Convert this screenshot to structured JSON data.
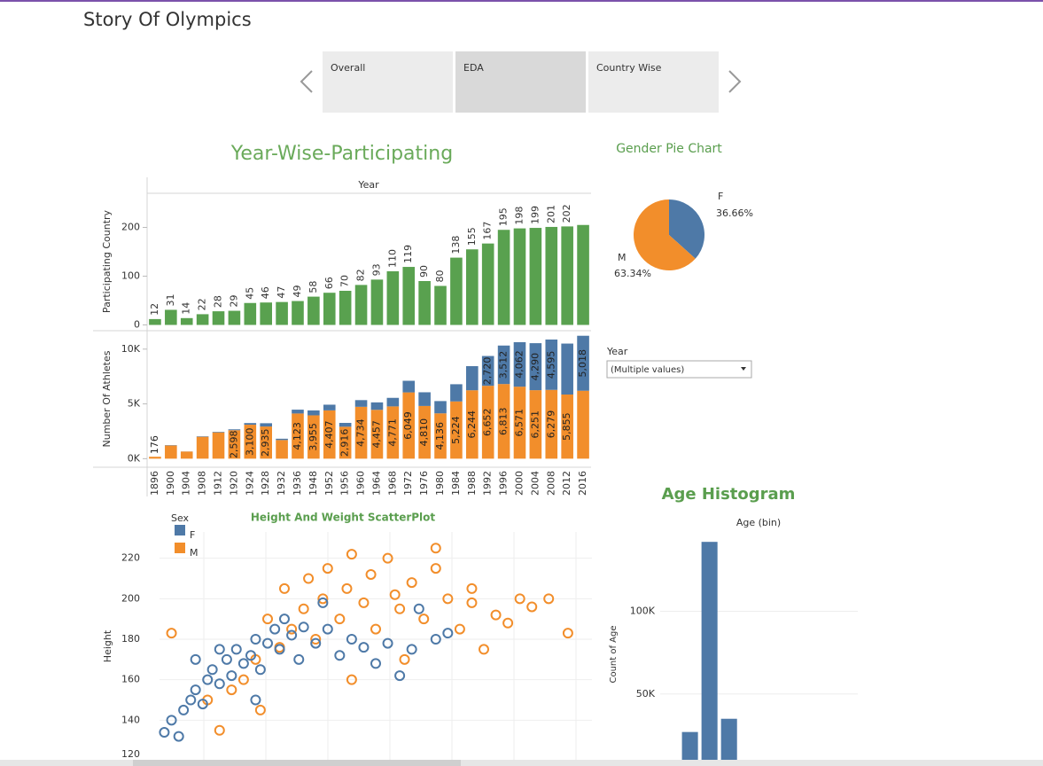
{
  "header": {
    "title": "Story Of Olympics"
  },
  "tabs": [
    "Overall",
    "EDA",
    "Country Wise"
  ],
  "filter": {
    "label": "Year",
    "value": "(Multiple values)"
  },
  "chart_data": [
    {
      "type": "bar",
      "title": "Year-Wise-Participating",
      "x_header": "Year",
      "ylabel": "Participating Country",
      "categories": [
        "1896",
        "1900",
        "1904",
        "1908",
        "1912",
        "1920",
        "1924",
        "1928",
        "1932",
        "1936",
        "1948",
        "1952",
        "1956",
        "1960",
        "1964",
        "1968",
        "1972",
        "1976",
        "1980",
        "1984",
        "1988",
        "1992",
        "1996",
        "2000",
        "2004",
        "2008",
        "2012",
        "2016"
      ],
      "values": [
        12,
        31,
        14,
        22,
        28,
        29,
        45,
        46,
        47,
        49,
        58,
        66,
        70,
        82,
        93,
        110,
        119,
        90,
        80,
        138,
        155,
        167,
        195,
        198,
        199,
        201,
        202,
        205
      ],
      "value_labels": [
        "12",
        "31",
        "14",
        "22",
        "28",
        "29",
        "45",
        "46",
        "47",
        "49",
        "58",
        "66",
        "70",
        "82",
        "93",
        "110",
        "119",
        "90",
        "80",
        "138",
        "155",
        "167",
        "195",
        "198",
        "199",
        "201",
        "202",
        null
      ],
      "color": "#59a14f",
      "ylim": [
        -10,
        270
      ],
      "yticks": [
        0,
        100,
        200
      ]
    },
    {
      "type": "stacked_bar",
      "ylabel": "Number Of Athletes",
      "series": [
        {
          "color": "#f28e2b",
          "values": [
            176,
            1200,
            650,
            2000,
            2400,
            2598,
            3100,
            2935,
            1700,
            4123,
            3955,
            4407,
            2916,
            4734,
            4457,
            4771,
            6049,
            4810,
            4136,
            5224,
            6244,
            6652,
            6813,
            6571,
            6251,
            6279,
            5855,
            6200
          ],
          "value_labels": [
            "176",
            null,
            null,
            null,
            null,
            "2,598",
            "3,100",
            "2,935",
            null,
            "4,123",
            "3,955",
            "4,407",
            "2,916",
            "4,734",
            "4,457",
            "4,771",
            "6,049",
            "4,810",
            "4,136",
            "5,224",
            "6,244",
            "6,652",
            "6,813",
            "6,571",
            "6,251",
            "6,279",
            "5,855",
            null
          ]
        },
        {
          "color": "#4e79a7",
          "values": [
            0,
            30,
            6,
            40,
            50,
            80,
            150,
            300,
            120,
            350,
            450,
            520,
            350,
            610,
            680,
            780,
            1060,
            1250,
            1120,
            1570,
            2200,
            2720,
            3512,
            4062,
            4290,
            4595,
            4650,
            5018
          ],
          "value_labels": [
            null,
            null,
            null,
            null,
            null,
            null,
            null,
            null,
            null,
            null,
            null,
            null,
            null,
            null,
            null,
            null,
            null,
            null,
            null,
            null,
            null,
            "2,720",
            "3,512",
            "4,062",
            "4,290",
            "4,595",
            null,
            "5,018"
          ]
        }
      ],
      "ylim": [
        -700,
        11600
      ],
      "yticks": [
        {
          "value": 0,
          "label": "0K"
        },
        {
          "value": 5000,
          "label": "5K"
        },
        {
          "value": 10000,
          "label": "10K"
        }
      ]
    },
    {
      "type": "pie",
      "title": "Gender Pie Chart",
      "categories": [
        "F",
        "M"
      ],
      "values": [
        36.66,
        63.34
      ],
      "value_labels": [
        "36.66%",
        "63.34%"
      ],
      "colors": [
        "#4e79a7",
        "#f28e2b"
      ]
    },
    {
      "type": "scatter",
      "title": "Height And Weight ScatterPlot",
      "legend_title": "Sex",
      "ylabel": "Height",
      "xlim": [
        20,
        200
      ],
      "ylim": [
        120,
        233
      ],
      "yticks": [
        120,
        140,
        160,
        180,
        200,
        220
      ],
      "grid": true,
      "series": [
        {
          "name": "F",
          "color": "#4e79a7",
          "x": [
            22,
            25,
            28,
            30,
            33,
            35,
            38,
            40,
            42,
            45,
            48,
            50,
            52,
            55,
            58,
            60,
            62,
            65,
            68,
            70,
            72,
            75,
            78,
            80,
            85,
            90,
            95,
            100,
            105,
            110,
            115,
            120,
            125,
            135,
            140,
            128,
            88,
            60,
            45,
            35
          ],
          "y": [
            134,
            140,
            132,
            145,
            150,
            155,
            148,
            160,
            165,
            158,
            170,
            162,
            175,
            168,
            172,
            180,
            165,
            178,
            185,
            175,
            190,
            182,
            170,
            186,
            178,
            185,
            172,
            180,
            176,
            168,
            178,
            162,
            175,
            180,
            183,
            195,
            198,
            150,
            175,
            170
          ]
        },
        {
          "name": "M",
          "color": "#f28e2b",
          "x": [
            25,
            40,
            45,
            50,
            55,
            60,
            62,
            65,
            70,
            72,
            75,
            80,
            82,
            85,
            88,
            90,
            95,
            98,
            100,
            105,
            108,
            110,
            115,
            118,
            120,
            125,
            130,
            135,
            140,
            145,
            150,
            155,
            160,
            165,
            170,
            175,
            182,
            190,
            122,
            100,
            135,
            150
          ],
          "y": [
            183,
            150,
            135,
            155,
            160,
            170,
            145,
            190,
            176,
            205,
            185,
            195,
            210,
            180,
            200,
            215,
            190,
            205,
            222,
            198,
            212,
            185,
            220,
            202,
            195,
            208,
            190,
            215,
            200,
            185,
            198,
            175,
            192,
            188,
            200,
            196,
            200,
            183,
            170,
            160,
            225,
            205
          ]
        }
      ]
    },
    {
      "type": "histogram",
      "title": "Age Histogram",
      "x_header": "Age (bin)",
      "ylabel": "Count of Age",
      "bins": [
        10,
        20,
        30,
        40
      ],
      "values": [
        27000,
        142000,
        35000
      ],
      "color": "#4e79a7",
      "xlim": [
        -27,
        100
      ],
      "ylim": [
        0,
        148000
      ],
      "yticks": [
        {
          "value": 50000,
          "label": "50K"
        },
        {
          "value": 100000,
          "label": "100K"
        }
      ]
    }
  ]
}
